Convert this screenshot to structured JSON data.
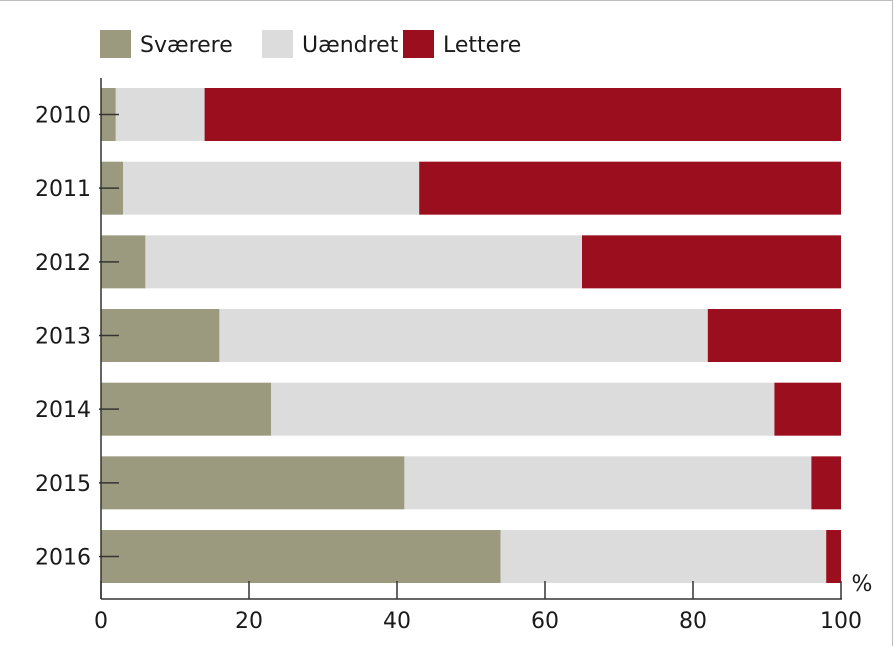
{
  "chart_data": {
    "type": "bar",
    "orientation": "horizontal",
    "stacked": true,
    "categories": [
      "2010",
      "2011",
      "2012",
      "2013",
      "2014",
      "2015",
      "2016"
    ],
    "series": [
      {
        "name": "Sværere",
        "color": "#9c9a7e",
        "values": [
          2,
          3,
          6,
          16,
          23,
          41,
          54
        ]
      },
      {
        "name": "Uændret",
        "color": "#dcdcdc",
        "values": [
          12,
          40,
          59,
          66,
          68,
          55,
          44
        ]
      },
      {
        "name": "Lettere",
        "color": "#9b0e1e",
        "values": [
          86,
          57,
          35,
          18,
          9,
          4,
          2
        ]
      }
    ],
    "xlim": [
      0,
      100
    ],
    "xticks": [
      0,
      20,
      40,
      60,
      80,
      100
    ],
    "xticklabels": [
      "0",
      "20",
      "40",
      "60",
      "80",
      "100"
    ],
    "xunit": "%",
    "legend": "top",
    "grid": false
  }
}
